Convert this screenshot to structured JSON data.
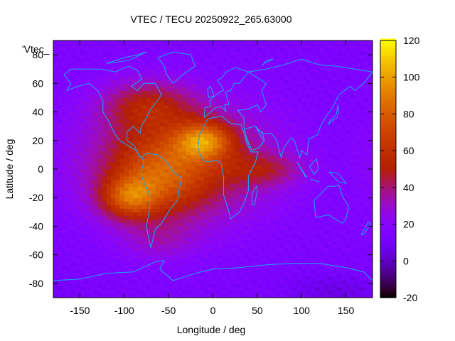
{
  "title": "VTEC / TECU 20250922_265.63000",
  "corner_label": "'Vtec_",
  "xlabel": "Longitude / deg",
  "ylabel": "Latitude / deg",
  "chart_data": {
    "type": "heatmap",
    "title": "VTEC / TECU 20250922_265.63000",
    "xlabel": "Longitude / deg",
    "ylabel": "Latitude / deg",
    "xlim": [
      -180,
      180
    ],
    "ylim": [
      -90,
      90
    ],
    "x_ticks": [
      -150,
      -100,
      -50,
      0,
      50,
      100,
      150
    ],
    "y_ticks": [
      -80,
      -60,
      -40,
      -20,
      0,
      20,
      40,
      60,
      80
    ],
    "colorbar": {
      "range": [
        -20,
        120
      ],
      "ticks": [
        -20,
        0,
        20,
        40,
        60,
        80,
        100,
        120
      ],
      "colormap": "gnuplot-pm3d"
    },
    "approx_features": [
      {
        "description": "background",
        "vtec": 15
      },
      {
        "description": "equatorial band Americas/Atlantic",
        "vtec": 60
      },
      {
        "description": "peak north Africa",
        "lon": -10,
        "lat": 20,
        "vtec": 112
      },
      {
        "description": "peak south America",
        "lon": -95,
        "lat": -20,
        "vtec": 100
      },
      {
        "description": "mid-latitude northern enhancement",
        "lon": -60,
        "lat": 45,
        "vtec": 55
      },
      {
        "description": "min south-east Pacific/Antarctica",
        "lon": 150,
        "lat": -85,
        "vtec": 5
      }
    ]
  }
}
